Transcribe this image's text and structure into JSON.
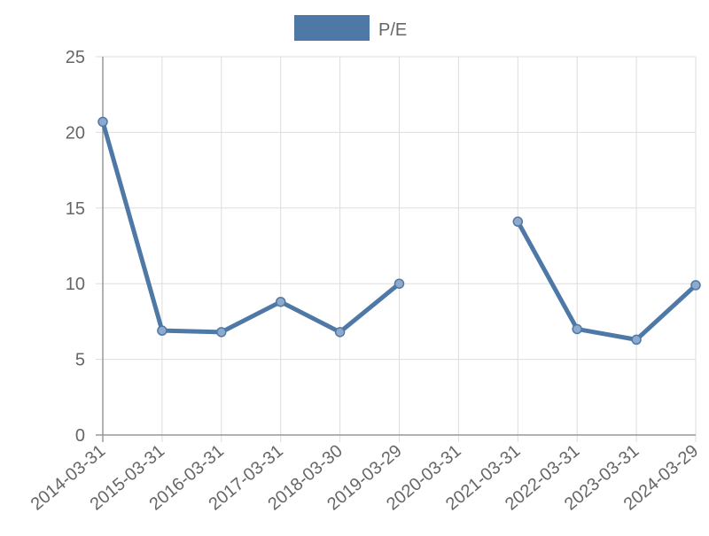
{
  "chart_data": {
    "type": "line",
    "categories": [
      "2014-03-31",
      "2015-03-31",
      "2016-03-31",
      "2017-03-31",
      "2018-03-30",
      "2019-03-29",
      "2020-03-31",
      "2021-03-31",
      "2022-03-31",
      "2023-03-31",
      "2024-03-29"
    ],
    "series": [
      {
        "name": "P/E",
        "color": "#4e79a7",
        "values": [
          20.7,
          6.9,
          6.8,
          8.8,
          6.8,
          10.0,
          null,
          14.1,
          7.0,
          6.3,
          9.9
        ]
      }
    ],
    "ylim": [
      0,
      25
    ],
    "yticks": [
      0,
      5,
      10,
      15,
      20,
      25
    ],
    "grid": true,
    "legend": "top"
  }
}
